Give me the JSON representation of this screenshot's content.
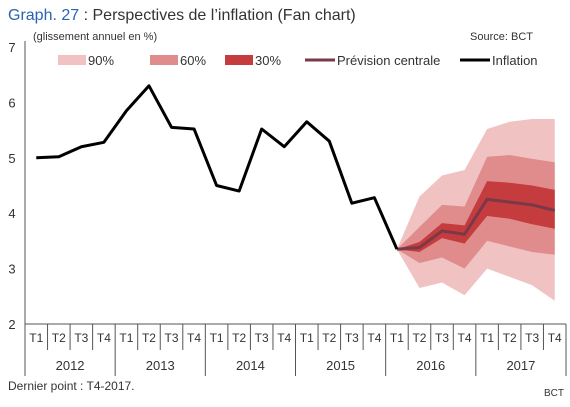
{
  "header": {
    "graph_number": "Graph. 27",
    "title_rest": " : Perspectives de l’inflation (Fan chart)",
    "unit_note": "(glissement annuel en %)",
    "source": "Source:  BCT"
  },
  "footer": {
    "note": "Dernier point : T4-2017.",
    "credit": "BCT"
  },
  "colors": {
    "title_blue": "#2a64b0",
    "band_90": "#f0c2c2",
    "band_60": "#e08c8c",
    "band_30": "#c43c3e",
    "central": "#7a3848",
    "inflation": "#000000",
    "axis": "#555555",
    "text": "#333333"
  },
  "chart_data": {
    "type": "line",
    "y_ticks": [
      "2",
      "3",
      "4",
      "5",
      "6",
      "7"
    ],
    "ylim": [
      2,
      7
    ],
    "quarters": [
      "T1",
      "T2",
      "T3",
      "T4",
      "T1",
      "T2",
      "T3",
      "T4",
      "T1",
      "T2",
      "T3",
      "T4",
      "T1",
      "T2",
      "T3",
      "T4",
      "T1",
      "T2",
      "T3",
      "T4",
      "T1",
      "T2",
      "T3",
      "T4"
    ],
    "years": [
      "2012",
      "2013",
      "2014",
      "2015",
      "2016",
      "2017"
    ],
    "legend": [
      {
        "key": "band_90",
        "label": "90%"
      },
      {
        "key": "band_60",
        "label": "60%"
      },
      {
        "key": "band_30",
        "label": "30%"
      },
      {
        "key": "central",
        "label": "Prévision centrale"
      },
      {
        "key": "inflation",
        "label": "Inflation"
      }
    ],
    "inflation": [
      5.0,
      5.02,
      5.2,
      5.28,
      5.85,
      6.3,
      5.55,
      5.52,
      4.5,
      4.4,
      5.52,
      5.2,
      5.65,
      5.3,
      4.18,
      4.28,
      3.35
    ],
    "forecast_start_index": 16,
    "central": [
      3.35,
      3.38,
      3.68,
      3.62,
      4.25,
      4.2,
      4.15,
      4.05
    ],
    "band_30": {
      "lower": [
        3.35,
        3.3,
        3.55,
        3.45,
        3.95,
        3.9,
        3.8,
        3.72
      ],
      "upper": [
        3.35,
        3.48,
        3.82,
        3.78,
        4.58,
        4.55,
        4.5,
        4.42
      ]
    },
    "band_60": {
      "lower": [
        3.35,
        3.1,
        3.2,
        3.0,
        3.5,
        3.4,
        3.3,
        3.25
      ],
      "upper": [
        3.35,
        3.75,
        4.15,
        4.12,
        5.02,
        5.05,
        4.98,
        4.92
      ]
    },
    "band_90": {
      "lower": [
        3.35,
        2.65,
        2.75,
        2.52,
        3.0,
        2.85,
        2.7,
        2.42
      ],
      "upper": [
        3.35,
        4.3,
        4.68,
        4.78,
        5.52,
        5.65,
        5.7,
        5.7
      ]
    }
  }
}
